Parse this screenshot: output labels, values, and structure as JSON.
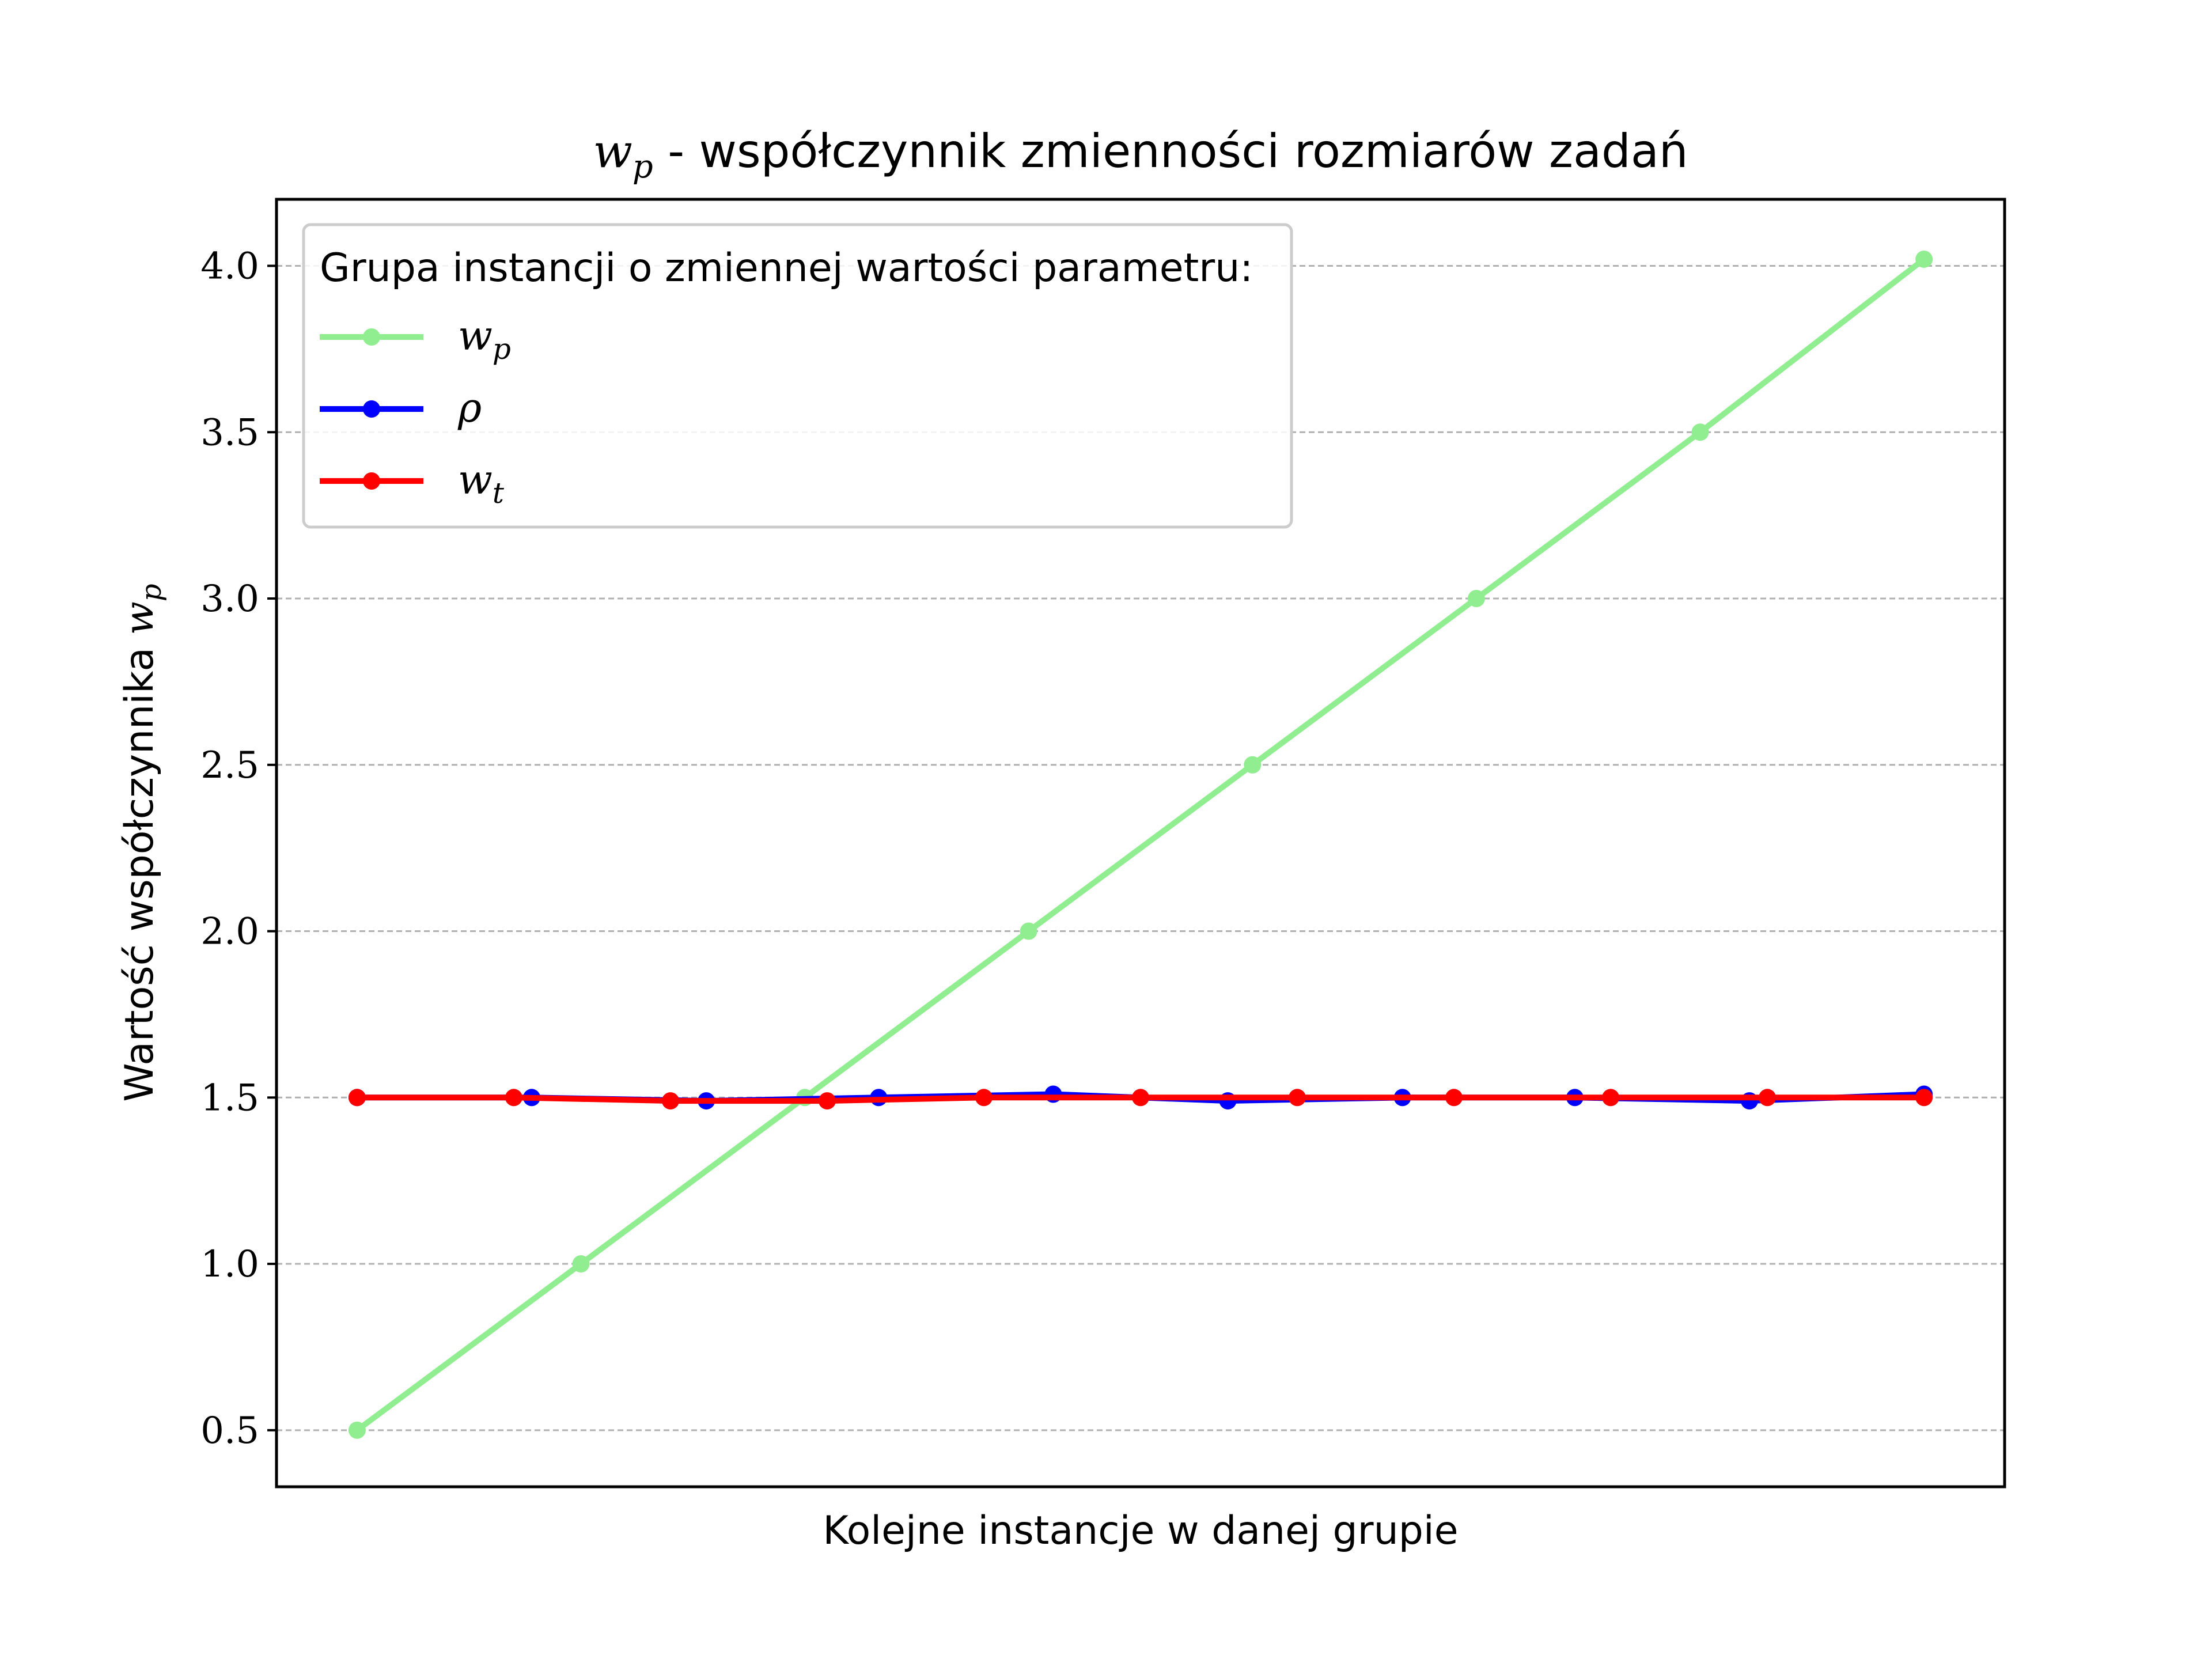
{
  "chart_data": {
    "type": "line",
    "title": {
      "math_base": "w",
      "math_sub": "p",
      "text": " - współczynnik zmienności rozmiarów zadań"
    },
    "xlabel": "Kolejne instancje w danej grupie",
    "ylabel": {
      "text": "Wartość współczynnika ",
      "math_base": "w",
      "math_sub": "p"
    },
    "ylim": [
      0.33,
      4.2
    ],
    "xlim": [
      -0.36,
      7.36
    ],
    "yticks": [
      "0.5",
      "1.0",
      "1.5",
      "2.0",
      "2.5",
      "3.0",
      "3.5",
      "4.0"
    ],
    "grid": "y dashed",
    "legend": {
      "title": "Grupa instancji o zmiennej wartości parametru:",
      "placement": "upper-left"
    },
    "series": [
      {
        "name": "w_p",
        "label_base": "w",
        "label_sub": "p",
        "color": "#90ee90",
        "x": [
          0,
          1,
          2,
          3,
          4,
          5,
          6,
          7
        ],
        "values": [
          0.5,
          1.0,
          1.5,
          2.0,
          2.5,
          3.0,
          3.5,
          4.02
        ]
      },
      {
        "name": "ρ",
        "label_base": "ρ",
        "label_sub": "",
        "color": "#0000ff",
        "x": [
          0,
          0.78,
          1.56,
          2.33,
          3.11,
          3.89,
          4.67,
          5.44,
          6.22,
          7
        ],
        "values": [
          1.5,
          1.5,
          1.49,
          1.5,
          1.51,
          1.49,
          1.5,
          1.5,
          1.49,
          1.51
        ]
      },
      {
        "name": "w_t",
        "label_base": "w",
        "label_sub": "t",
        "color": "#ff0000",
        "x": [
          0,
          0.7,
          1.4,
          2.1,
          2.8,
          3.5,
          4.2,
          4.9,
          5.6,
          6.3,
          7
        ],
        "values": [
          1.5,
          1.5,
          1.49,
          1.49,
          1.5,
          1.5,
          1.5,
          1.5,
          1.5,
          1.5,
          1.5
        ]
      }
    ]
  }
}
